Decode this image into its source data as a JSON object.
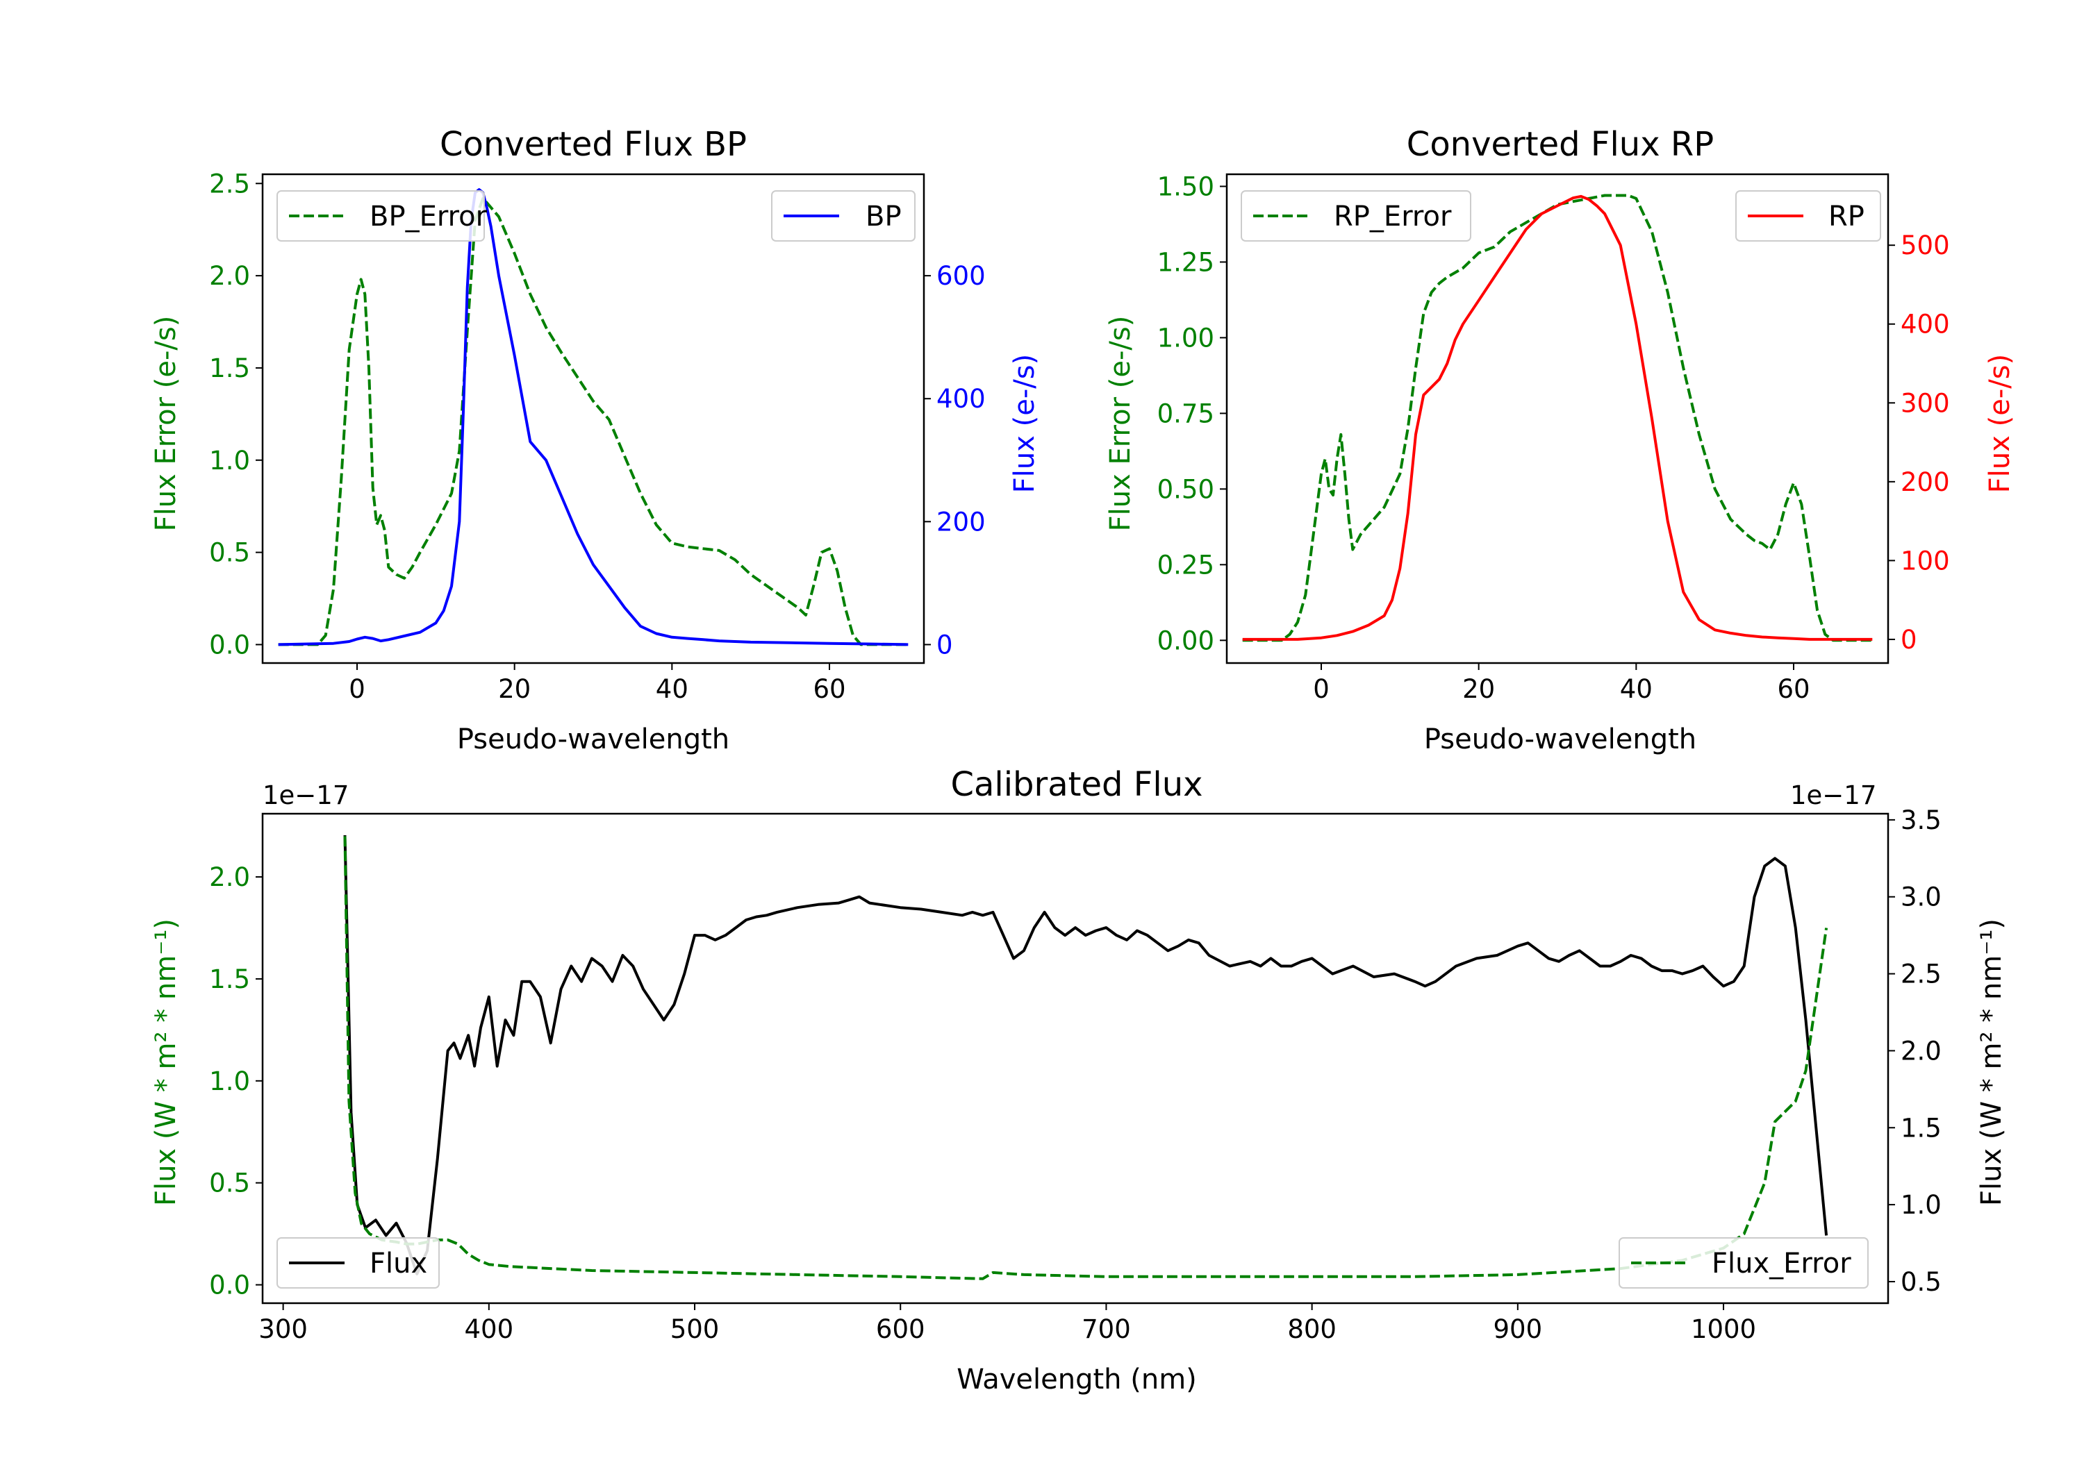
{
  "figure": {
    "background": "#ffffff"
  },
  "chart_data": [
    {
      "id": "bp",
      "type": "line",
      "title": "Converted Flux BP",
      "xlabel": "Pseudo-wavelength",
      "ylabel": "Flux Error (e-/s)",
      "ylabel_color": "#008000",
      "y2label": "Flux (e-/s)",
      "y2label_color": "#0000ff",
      "xlim": [
        -12,
        72
      ],
      "ylim": [
        -0.1,
        2.55
      ],
      "y2lim": [
        -30,
        765
      ],
      "xticks": [
        0,
        20,
        40,
        60
      ],
      "yticks": [
        "0.0",
        "0.5",
        "1.0",
        "1.5",
        "2.0",
        "2.5"
      ],
      "y2ticks": [
        "0",
        "200",
        "400",
        "600"
      ],
      "ytick_color": "#008000",
      "y2tick_color": "#0000ff",
      "grid": false,
      "legend_left": {
        "label": "BP_Error",
        "placement": "upper left"
      },
      "legend_right": {
        "label": "BP",
        "placement": "upper right"
      },
      "series": [
        {
          "name": "BP_Error",
          "axis": "left",
          "color": "#008000",
          "style": "dashed",
          "x": [
            -10,
            -5,
            -4,
            -3,
            -2,
            -1,
            0,
            0.5,
            1,
            1.5,
            2,
            2.5,
            3,
            3.5,
            4,
            5,
            6,
            7,
            8,
            10,
            12,
            13,
            14,
            15,
            16,
            17,
            18,
            20,
            22,
            24,
            26,
            28,
            30,
            32,
            34,
            36,
            38,
            40,
            42,
            44,
            46,
            48,
            50,
            52,
            54,
            56,
            57,
            58,
            59,
            60,
            61,
            62,
            63,
            64,
            65,
            66,
            70
          ],
          "y": [
            0,
            0,
            0.05,
            0.3,
            0.9,
            1.6,
            1.9,
            1.98,
            1.9,
            1.5,
            0.85,
            0.65,
            0.7,
            0.62,
            0.42,
            0.38,
            0.36,
            0.42,
            0.5,
            0.65,
            0.82,
            1.05,
            1.7,
            2.3,
            2.42,
            2.37,
            2.32,
            2.12,
            1.9,
            1.72,
            1.58,
            1.45,
            1.32,
            1.22,
            1.02,
            0.82,
            0.65,
            0.55,
            0.53,
            0.52,
            0.51,
            0.46,
            0.38,
            0.32,
            0.26,
            0.2,
            0.16,
            0.32,
            0.5,
            0.52,
            0.4,
            0.2,
            0.05,
            0,
            0,
            0,
            0
          ]
        },
        {
          "name": "BP",
          "axis": "right",
          "color": "#0000ff",
          "style": "solid",
          "x": [
            -10,
            -3,
            -1,
            0,
            1,
            2,
            3,
            4,
            6,
            8,
            10,
            11,
            12,
            13,
            13.5,
            14,
            14.5,
            15,
            15.5,
            16,
            16.5,
            17,
            18,
            20,
            22,
            24,
            26,
            28,
            30,
            32,
            34,
            36,
            38,
            40,
            42,
            44,
            46,
            50,
            55,
            60,
            65,
            70
          ],
          "y": [
            0,
            2,
            5,
            9,
            12,
            10,
            6,
            8,
            14,
            20,
            35,
            55,
            95,
            200,
            380,
            580,
            690,
            735,
            740,
            735,
            710,
            680,
            600,
            470,
            330,
            300,
            240,
            180,
            130,
            95,
            60,
            30,
            18,
            12,
            10,
            8,
            6,
            4,
            3,
            2,
            1,
            0
          ]
        }
      ]
    },
    {
      "id": "rp",
      "type": "line",
      "title": "Converted Flux RP",
      "xlabel": "Pseudo-wavelength",
      "ylabel": "Flux Error (e-/s)",
      "ylabel_color": "#008000",
      "y2label": "Flux (e-/s)",
      "y2label_color": "#ff0000",
      "xlim": [
        -12,
        72
      ],
      "ylim": [
        -0.075,
        1.54
      ],
      "y2lim": [
        -30,
        590
      ],
      "xticks": [
        0,
        20,
        40,
        60
      ],
      "yticks": [
        "0.00",
        "0.25",
        "0.50",
        "0.75",
        "1.00",
        "1.25",
        "1.50"
      ],
      "y2ticks": [
        "0",
        "100",
        "200",
        "300",
        "400",
        "500"
      ],
      "ytick_color": "#008000",
      "y2tick_color": "#ff0000",
      "grid": false,
      "legend_left": {
        "label": "RP_Error",
        "placement": "upper left"
      },
      "legend_right": {
        "label": "RP",
        "placement": "upper right"
      },
      "series": [
        {
          "name": "RP_Error",
          "axis": "left",
          "color": "#008000",
          "style": "dashed",
          "x": [
            -10,
            -5,
            -4,
            -3,
            -2,
            -1,
            0,
            0.5,
            1,
            1.5,
            2,
            2.5,
            3,
            3.5,
            4,
            5,
            6,
            8,
            10,
            11,
            12,
            13,
            14,
            15,
            16,
            18,
            20,
            22,
            24,
            26,
            28,
            30,
            32,
            34,
            36,
            38,
            39,
            40,
            42,
            44,
            46,
            48,
            50,
            52,
            54,
            55,
            56,
            57,
            58,
            59,
            60,
            61,
            62,
            63,
            64,
            65,
            66,
            70
          ],
          "y": [
            0,
            0,
            0.02,
            0.06,
            0.15,
            0.35,
            0.55,
            0.6,
            0.5,
            0.48,
            0.6,
            0.68,
            0.55,
            0.4,
            0.3,
            0.35,
            0.38,
            0.44,
            0.55,
            0.7,
            0.9,
            1.08,
            1.15,
            1.18,
            1.2,
            1.23,
            1.28,
            1.3,
            1.35,
            1.38,
            1.41,
            1.44,
            1.45,
            1.46,
            1.47,
            1.47,
            1.47,
            1.46,
            1.35,
            1.15,
            0.9,
            0.68,
            0.5,
            0.4,
            0.35,
            0.33,
            0.32,
            0.3,
            0.35,
            0.45,
            0.52,
            0.45,
            0.28,
            0.1,
            0.02,
            0,
            0,
            0
          ]
        },
        {
          "name": "RP",
          "axis": "right",
          "color": "#ff0000",
          "style": "solid",
          "x": [
            -10,
            -3,
            0,
            2,
            4,
            6,
            8,
            9,
            10,
            11,
            12,
            13,
            14,
            15,
            16,
            17,
            18,
            20,
            22,
            24,
            26,
            28,
            30,
            32,
            33,
            34,
            35,
            36,
            38,
            40,
            42,
            44,
            46,
            48,
            50,
            52,
            54,
            56,
            58,
            60,
            62,
            65,
            70
          ],
          "y": [
            0,
            0,
            2,
            5,
            10,
            18,
            30,
            50,
            90,
            160,
            260,
            310,
            320,
            330,
            350,
            380,
            400,
            430,
            460,
            490,
            520,
            540,
            550,
            560,
            562,
            558,
            550,
            540,
            500,
            400,
            280,
            150,
            60,
            25,
            12,
            8,
            5,
            3,
            2,
            1,
            0,
            0,
            0
          ]
        }
      ]
    },
    {
      "id": "calibrated",
      "type": "line",
      "title": "Calibrated Flux",
      "xlabel": "Wavelength (nm)",
      "ylabel": "Flux (W * m² * nm⁻¹)",
      "ylabel_color": "#008000",
      "y2label": "Flux (W * m² * nm⁻¹)",
      "y2label_color": "#000000",
      "y_offset": "1e−17",
      "y2_offset": "1e−17",
      "xlim": [
        290,
        1080
      ],
      "ylim": [
        -0.09,
        2.31
      ],
      "y2lim": [
        0.36,
        3.54
      ],
      "xticks": [
        300,
        400,
        500,
        600,
        700,
        800,
        900,
        1000
      ],
      "yticks": [
        "0.0",
        "0.5",
        "1.0",
        "1.5",
        "2.0"
      ],
      "y2ticks": [
        "0.5",
        "1.0",
        "1.5",
        "2.0",
        "2.5",
        "3.0",
        "3.5"
      ],
      "ytick_color": "#008000",
      "y2tick_color": "#000000",
      "grid": false,
      "legend_left": {
        "label": "Flux",
        "placement": "lower left"
      },
      "legend_right": {
        "label": "Flux_Error",
        "placement": "lower right"
      },
      "series": [
        {
          "name": "Flux",
          "axis": "right",
          "color": "#000000",
          "style": "solid",
          "x": [
            330,
            333,
            336,
            340,
            345,
            350,
            355,
            360,
            365,
            370,
            375,
            380,
            383,
            386,
            390,
            393,
            396,
            400,
            404,
            408,
            412,
            416,
            420,
            425,
            430,
            435,
            440,
            445,
            450,
            455,
            460,
            465,
            470,
            475,
            480,
            485,
            490,
            495,
            500,
            505,
            510,
            515,
            520,
            525,
            530,
            535,
            540,
            550,
            560,
            570,
            575,
            580,
            585,
            590,
            600,
            610,
            620,
            630,
            635,
            640,
            645,
            650,
            655,
            660,
            665,
            670,
            675,
            680,
            685,
            690,
            695,
            700,
            705,
            710,
            715,
            720,
            725,
            730,
            735,
            740,
            745,
            750,
            760,
            770,
            775,
            780,
            785,
            790,
            795,
            800,
            805,
            810,
            820,
            830,
            840,
            850,
            855,
            860,
            870,
            880,
            890,
            900,
            905,
            910,
            915,
            920,
            925,
            930,
            935,
            940,
            945,
            950,
            955,
            960,
            965,
            970,
            975,
            980,
            985,
            990,
            995,
            1000,
            1005,
            1010,
            1015,
            1020,
            1025,
            1030,
            1035,
            1040,
            1045,
            1050
          ],
          "y": [
            3.4,
            1.6,
            1.0,
            0.85,
            0.9,
            0.8,
            0.88,
            0.75,
            0.55,
            0.7,
            1.3,
            2.0,
            2.05,
            1.95,
            2.1,
            1.9,
            2.15,
            2.35,
            1.9,
            2.2,
            2.1,
            2.45,
            2.45,
            2.35,
            2.05,
            2.4,
            2.55,
            2.45,
            2.6,
            2.55,
            2.45,
            2.62,
            2.55,
            2.4,
            2.3,
            2.2,
            2.3,
            2.5,
            2.75,
            2.75,
            2.72,
            2.75,
            2.8,
            2.85,
            2.87,
            2.88,
            2.9,
            2.93,
            2.95,
            2.96,
            2.98,
            3.0,
            2.96,
            2.95,
            2.93,
            2.92,
            2.9,
            2.88,
            2.9,
            2.88,
            2.9,
            2.75,
            2.6,
            2.65,
            2.8,
            2.9,
            2.8,
            2.75,
            2.8,
            2.75,
            2.78,
            2.8,
            2.75,
            2.72,
            2.78,
            2.75,
            2.7,
            2.65,
            2.68,
            2.72,
            2.7,
            2.62,
            2.55,
            2.58,
            2.55,
            2.6,
            2.55,
            2.55,
            2.58,
            2.6,
            2.55,
            2.5,
            2.55,
            2.48,
            2.5,
            2.45,
            2.42,
            2.45,
            2.55,
            2.6,
            2.62,
            2.68,
            2.7,
            2.65,
            2.6,
            2.58,
            2.62,
            2.65,
            2.6,
            2.55,
            2.55,
            2.58,
            2.62,
            2.6,
            2.55,
            2.52,
            2.52,
            2.5,
            2.52,
            2.55,
            2.48,
            2.42,
            2.45,
            2.55,
            3.0,
            3.2,
            3.25,
            3.2,
            2.8,
            2.2,
            1.5,
            0.8
          ]
        },
        {
          "name": "Flux_Error",
          "axis": "left",
          "color": "#008000",
          "style": "dashed",
          "x": [
            330,
            332,
            335,
            338,
            342,
            348,
            355,
            360,
            365,
            370,
            375,
            380,
            385,
            390,
            395,
            400,
            410,
            430,
            450,
            500,
            550,
            600,
            640,
            645,
            660,
            700,
            750,
            800,
            850,
            900,
            950,
            980,
            1000,
            1010,
            1020,
            1025,
            1030,
            1035,
            1040,
            1045,
            1050
          ],
          "y": [
            2.2,
            0.9,
            0.45,
            0.3,
            0.25,
            0.22,
            0.21,
            0.2,
            0.2,
            0.21,
            0.22,
            0.22,
            0.2,
            0.15,
            0.12,
            0.1,
            0.09,
            0.08,
            0.07,
            0.06,
            0.05,
            0.04,
            0.03,
            0.06,
            0.05,
            0.04,
            0.04,
            0.04,
            0.04,
            0.05,
            0.08,
            0.12,
            0.18,
            0.25,
            0.5,
            0.8,
            0.85,
            0.9,
            1.05,
            1.4,
            1.75
          ]
        }
      ]
    }
  ]
}
